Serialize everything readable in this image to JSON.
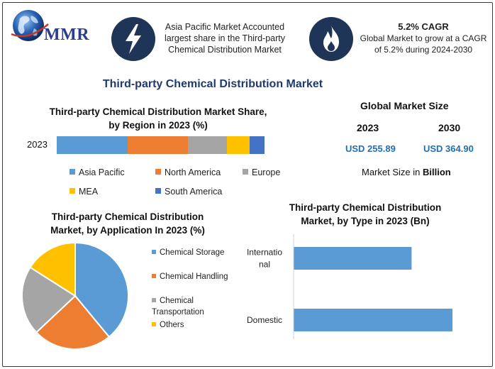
{
  "header": {
    "logo_text": "MMR",
    "card1_text": "Asia Pacific Market Accounted largest share in the Third-party Chemical Distribution Market",
    "card1_icon": "lightning-bolt-icon",
    "card2_title": "5.2% CAGR",
    "card2_text": "Global Market to grow at a CAGR of 5.2% during 2024-2030",
    "card2_icon": "flame-icon"
  },
  "main_title": "Third-party Chemical Distribution Market",
  "global_market": {
    "title": "Global Market Size",
    "year_a": "2023",
    "year_b": "2030",
    "value_a": "USD 255.89",
    "value_b": "USD 364.90",
    "unit_prefix": "Market Size in",
    "unit_bold": "Billion"
  },
  "colors": {
    "blue": "#5b9bd5",
    "orange": "#ed7d31",
    "gray": "#a5a5a5",
    "yellow": "#ffc000",
    "darkblue": "#4472c4",
    "navy": "#1f3557"
  },
  "chart_data": [
    {
      "type": "bar",
      "orientation": "horizontal-stacked",
      "title": "Third-party Chemical Distribution Market Share, by Region in 2023 (%)",
      "categories": [
        "2023"
      ],
      "series": [
        {
          "name": "Asia Pacific",
          "values": [
            34
          ],
          "color": "#5b9bd5"
        },
        {
          "name": "North America",
          "values": [
            29
          ],
          "color": "#ed7d31"
        },
        {
          "name": "Europe",
          "values": [
            19
          ],
          "color": "#a5a5a5"
        },
        {
          "name": "MEA",
          "values": [
            11
          ],
          "color": "#ffc000"
        },
        {
          "name": "South America",
          "values": [
            7
          ],
          "color": "#4472c4"
        }
      ],
      "legend": "bottom"
    },
    {
      "type": "pie",
      "title": "Third-party Chemical Distribution Market, by Application In 2023 (%)",
      "slices": [
        {
          "name": "Chemical Storage",
          "value": 39,
          "color": "#5b9bd5"
        },
        {
          "name": "Chemical Handling",
          "value": 24,
          "color": "#ed7d31"
        },
        {
          "name": "Chemical Transportation",
          "value": 21,
          "color": "#a5a5a5"
        },
        {
          "name": "Others",
          "value": 16,
          "color": "#ffc000"
        }
      ],
      "legend": "right"
    },
    {
      "type": "bar",
      "orientation": "horizontal",
      "title": "Third-party Chemical Distribution Market, by Type in 2023 (Bn)",
      "categories": [
        "International",
        "Domestic"
      ],
      "category_label_lines": [
        [
          "Internatio",
          "nal"
        ],
        [
          "Domestic"
        ]
      ],
      "values": [
        104,
        140
      ],
      "xlim": [
        0,
        150
      ],
      "color": "#5b9bd5"
    }
  ]
}
